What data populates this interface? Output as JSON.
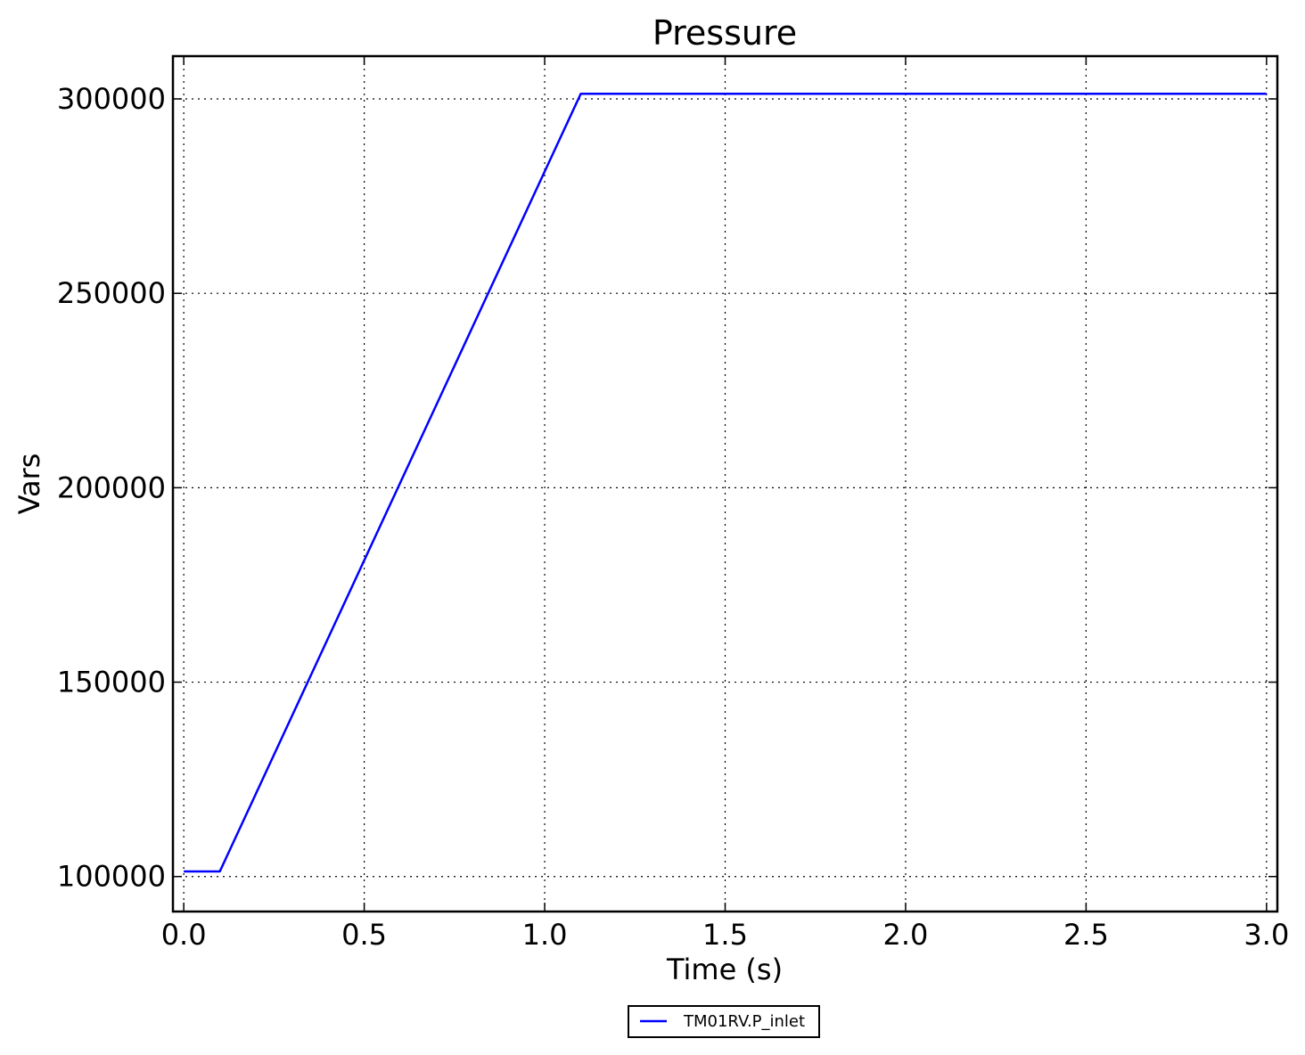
{
  "chart_data": {
    "type": "line",
    "title": "Pressure",
    "xlabel": "Time (s)",
    "ylabel": "Vars",
    "xlim": [
      -0.03,
      3.03
    ],
    "ylim": [
      91000,
      311000
    ],
    "xticks": [
      0.0,
      0.5,
      1.0,
      1.5,
      2.0,
      2.5,
      3.0
    ],
    "xtick_labels": [
      "0.0",
      "0.5",
      "1.0",
      "1.5",
      "2.0",
      "2.5",
      "3.0"
    ],
    "yticks": [
      100000,
      150000,
      200000,
      250000,
      300000
    ],
    "ytick_labels": [
      "100000",
      "150000",
      "200000",
      "250000",
      "300000"
    ],
    "grid": true,
    "legend": "bottom-center",
    "series": [
      {
        "name": "TM01RV.P_inlet",
        "color": "#0000ff",
        "x": [
          0.0,
          0.1,
          1.1,
          3.0
        ],
        "y": [
          101325,
          101325,
          301325,
          301325
        ]
      }
    ]
  }
}
